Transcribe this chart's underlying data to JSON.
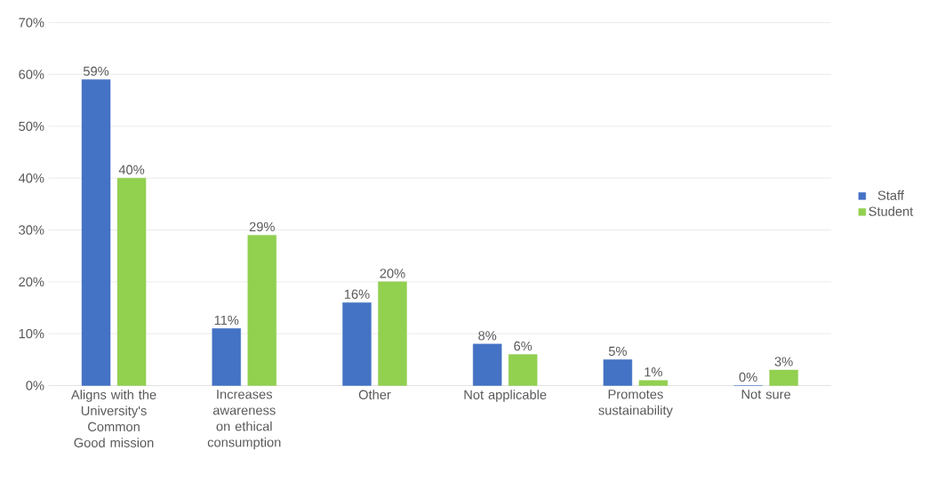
{
  "chart_data": {
    "type": "bar",
    "categories": [
      "Aligns with the University's Common Good mission",
      "Increases awareness on ethical consumption",
      "Other",
      "Not applicable",
      "Promotes sustainability",
      "Not sure"
    ],
    "series": [
      {
        "name": "Staff",
        "color": "#4472c4",
        "values": [
          59,
          11,
          16,
          8,
          5,
          0
        ],
        "value_labels": [
          "59%",
          "11%",
          "16%",
          "8%",
          "5%",
          "0%"
        ]
      },
      {
        "name": "Student",
        "color": "#92d050",
        "values": [
          40,
          29,
          20,
          6,
          1,
          3
        ],
        "value_labels": [
          "40%",
          "29%",
          "20%",
          "6%",
          "1%",
          "3%"
        ]
      }
    ],
    "ylim": [
      0,
      70
    ],
    "yticks": [
      {
        "value": 0,
        "label": "0%"
      },
      {
        "value": 10,
        "label": "10%"
      },
      {
        "value": 20,
        "label": "20%"
      },
      {
        "value": 30,
        "label": "30%"
      },
      {
        "value": 40,
        "label": "40%"
      },
      {
        "value": 50,
        "label": "50%"
      },
      {
        "value": 60,
        "label": "60%"
      },
      {
        "value": 70,
        "label": "70%"
      }
    ],
    "grid": "y",
    "legend": "right"
  }
}
